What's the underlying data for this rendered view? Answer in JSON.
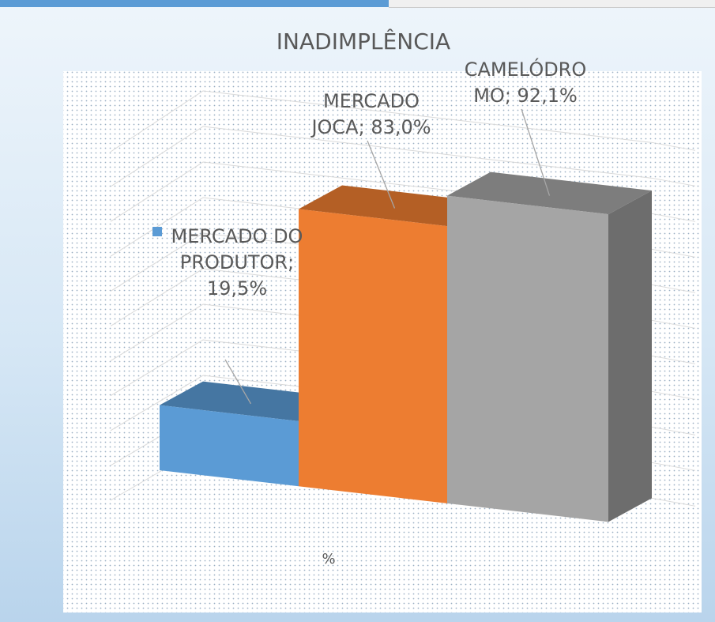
{
  "chart_data": {
    "type": "bar3d",
    "title": "INADIMPLÊNCIA",
    "x_label": "%",
    "categories": [
      "%"
    ],
    "ylim": [
      0,
      100
    ],
    "label_separator": "; ",
    "series": [
      {
        "name": "MERCADO DO PRODUTOR",
        "color": "#5b9bd5",
        "values": [
          19.5
        ],
        "value_labels": [
          "19,5%"
        ]
      },
      {
        "name": "MERCADO JOCA",
        "color": "#ed7d31",
        "values": [
          83.0
        ],
        "value_labels": [
          "83,0%"
        ]
      },
      {
        "name": "CAMELÓDROMO",
        "color": "#a5a5a5",
        "values": [
          92.1
        ],
        "value_labels": [
          "92,1%"
        ]
      }
    ]
  }
}
